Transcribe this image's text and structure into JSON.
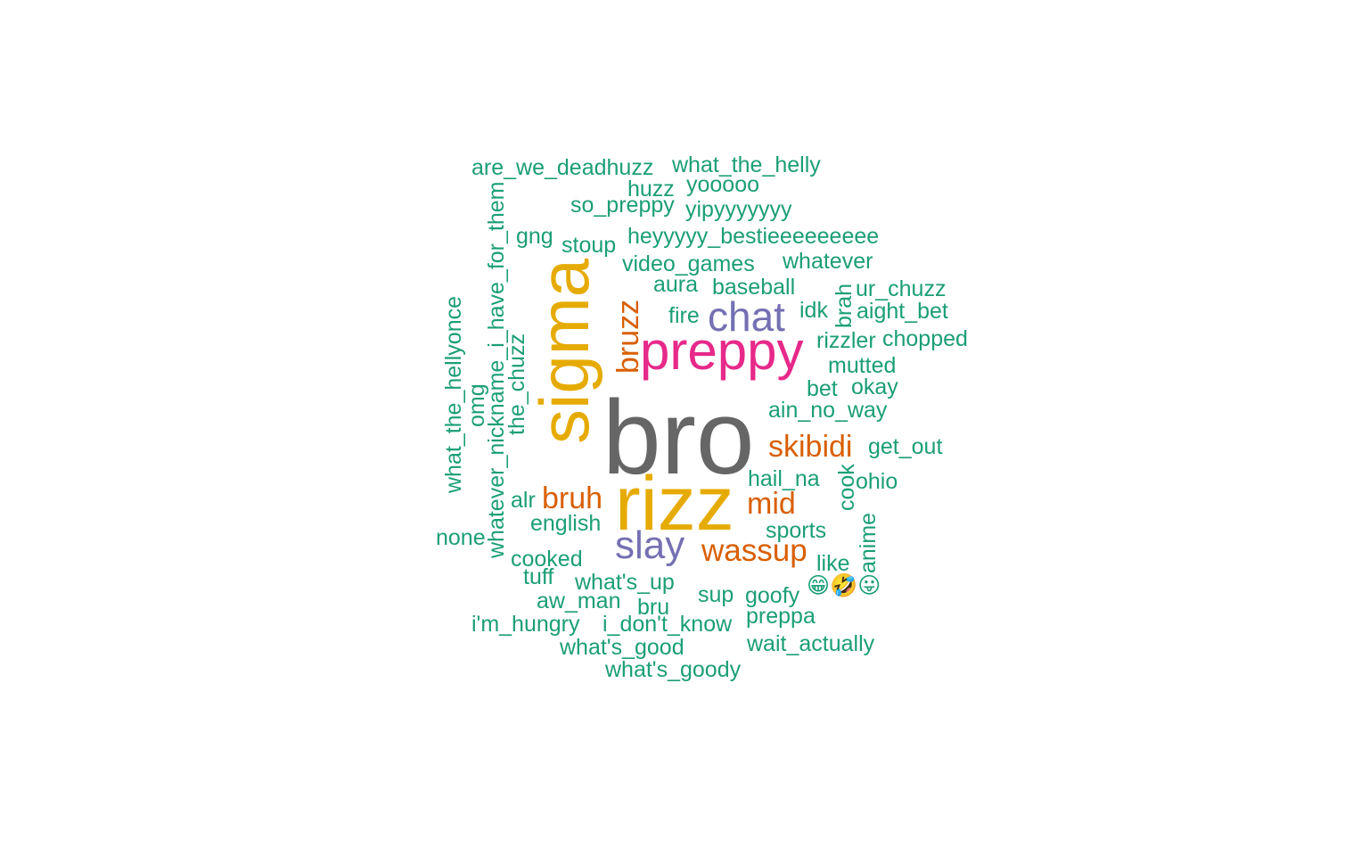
{
  "wordcloud": {
    "colors": {
      "teal": "#1b9e77",
      "gold": "#e6ab02",
      "gray": "#666666",
      "pink": "#e7298a",
      "purple": "#7570b3",
      "orange": "#d95f02"
    },
    "words": [
      {
        "text": "bro",
        "color": "gray",
        "rotated": false
      },
      {
        "text": "sigma",
        "color": "gold",
        "rotated": true
      },
      {
        "text": "rizz",
        "color": "gold",
        "rotated": false
      },
      {
        "text": "preppy",
        "color": "pink",
        "rotated": false
      },
      {
        "text": "chat",
        "color": "purple",
        "rotated": false
      },
      {
        "text": "slay",
        "color": "purple",
        "rotated": false
      },
      {
        "text": "wassup",
        "color": "orange",
        "rotated": false
      },
      {
        "text": "skibidi",
        "color": "orange",
        "rotated": false
      },
      {
        "text": "bruh",
        "color": "orange",
        "rotated": false
      },
      {
        "text": "mid",
        "color": "orange",
        "rotated": false
      },
      {
        "text": "bruzz",
        "color": "orange",
        "rotated": true
      },
      {
        "text": "are_we_deadhuzz",
        "color": "teal",
        "rotated": false
      },
      {
        "text": "what_the_helly",
        "color": "teal",
        "rotated": false
      },
      {
        "text": "huzz",
        "color": "teal",
        "rotated": false
      },
      {
        "text": "yooooo",
        "color": "teal",
        "rotated": false
      },
      {
        "text": "so_preppy",
        "color": "teal",
        "rotated": false
      },
      {
        "text": "yipyyyyyyy",
        "color": "teal",
        "rotated": false
      },
      {
        "text": "gng",
        "color": "teal",
        "rotated": false
      },
      {
        "text": "stoup",
        "color": "teal",
        "rotated": false
      },
      {
        "text": "heyyyyy_bestieeeeeeeee",
        "color": "teal",
        "rotated": false
      },
      {
        "text": "video_games",
        "color": "teal",
        "rotated": false
      },
      {
        "text": "whatever",
        "color": "teal",
        "rotated": false
      },
      {
        "text": "aura",
        "color": "teal",
        "rotated": false
      },
      {
        "text": "baseball",
        "color": "teal",
        "rotated": false
      },
      {
        "text": "ur_chuzz",
        "color": "teal",
        "rotated": false
      },
      {
        "text": "brah",
        "color": "teal",
        "rotated": true
      },
      {
        "text": "idk",
        "color": "teal",
        "rotated": false
      },
      {
        "text": "aight_bet",
        "color": "teal",
        "rotated": false
      },
      {
        "text": "fire",
        "color": "teal",
        "rotated": false
      },
      {
        "text": "rizzler",
        "color": "teal",
        "rotated": false
      },
      {
        "text": "chopped",
        "color": "teal",
        "rotated": false
      },
      {
        "text": "mutted",
        "color": "teal",
        "rotated": false
      },
      {
        "text": "bet",
        "color": "teal",
        "rotated": false
      },
      {
        "text": "okay",
        "color": "teal",
        "rotated": false
      },
      {
        "text": "ain_no_way",
        "color": "teal",
        "rotated": false
      },
      {
        "text": "get_out",
        "color": "teal",
        "rotated": false
      },
      {
        "text": "hail_na",
        "color": "teal",
        "rotated": false
      },
      {
        "text": "cook",
        "color": "teal",
        "rotated": true
      },
      {
        "text": "ohio",
        "color": "teal",
        "rotated": false
      },
      {
        "text": "sports",
        "color": "teal",
        "rotated": false
      },
      {
        "text": "anime",
        "color": "teal",
        "rotated": true
      },
      {
        "text": "like",
        "color": "teal",
        "rotated": false
      },
      {
        "text": "what_the_hellyonce",
        "color": "teal",
        "rotated": true
      },
      {
        "text": "whatever_nickname_i_have_for_them",
        "color": "teal",
        "rotated": true
      },
      {
        "text": "omg",
        "color": "teal",
        "rotated": true
      },
      {
        "text": "the_chuzz",
        "color": "teal",
        "rotated": true
      },
      {
        "text": "alr",
        "color": "teal",
        "rotated": false
      },
      {
        "text": "english",
        "color": "teal",
        "rotated": false
      },
      {
        "text": "none",
        "color": "teal",
        "rotated": false
      },
      {
        "text": "cooked",
        "color": "teal",
        "rotated": false
      },
      {
        "text": "tuff",
        "color": "teal",
        "rotated": false
      },
      {
        "text": "what's_up",
        "color": "teal",
        "rotated": false
      },
      {
        "text": "aw_man",
        "color": "teal",
        "rotated": false
      },
      {
        "text": "sup",
        "color": "teal",
        "rotated": false
      },
      {
        "text": "goofy",
        "color": "teal",
        "rotated": false
      },
      {
        "text": "😁🤣😛",
        "color": "teal",
        "rotated": false
      },
      {
        "text": "bru",
        "color": "teal",
        "rotated": false
      },
      {
        "text": "preppa",
        "color": "teal",
        "rotated": false
      },
      {
        "text": "i'm_hungry",
        "color": "teal",
        "rotated": false
      },
      {
        "text": "i_don't_know",
        "color": "teal",
        "rotated": false
      },
      {
        "text": "what's_good",
        "color": "teal",
        "rotated": false
      },
      {
        "text": "wait_actually",
        "color": "teal",
        "rotated": false
      },
      {
        "text": "what's_goody",
        "color": "teal",
        "rotated": false
      }
    ]
  }
}
